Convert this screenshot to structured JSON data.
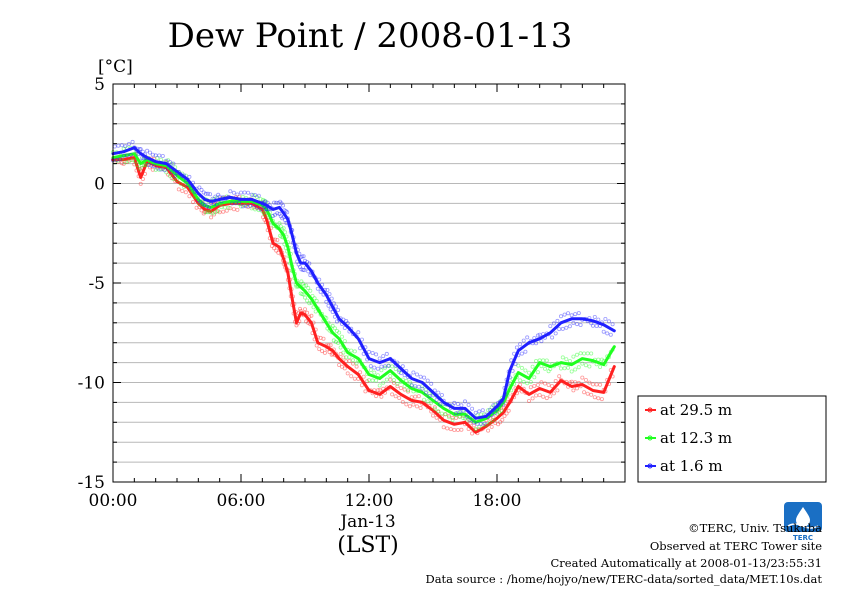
{
  "chart_data": {
    "type": "line",
    "title": "Dew Point / 2008-01-13",
    "ylabel": "[°C]",
    "xlabel_date": "Jan-13",
    "xlabel_tz": "(LST)",
    "ylim": [
      -15,
      5
    ],
    "xlim_hours": [
      0,
      24
    ],
    "y_ticks": [
      "5",
      "0",
      "-5",
      "-10",
      "-15"
    ],
    "y_tick_values": [
      5,
      0,
      -5,
      -10,
      -15
    ],
    "x_ticks": [
      "00:00",
      "06:00",
      "12:00",
      "18:00"
    ],
    "x_tick_values": [
      0,
      6,
      12,
      18
    ],
    "grid": true,
    "legend_position": "right",
    "series": [
      {
        "name": "at 29.5 m",
        "color": "#ff2020",
        "x": [
          0,
          0.5,
          1,
          1.3,
          1.6,
          2,
          2.5,
          3,
          3.5,
          4,
          4.3,
          4.6,
          5,
          5.5,
          6,
          6.5,
          7,
          7.2,
          7.5,
          7.8,
          8,
          8.2,
          8.4,
          8.6,
          8.8,
          9,
          9.3,
          9.6,
          10,
          10.3,
          10.6,
          11,
          11.5,
          12,
          12.5,
          13,
          13.5,
          14,
          14.5,
          15,
          15.5,
          16,
          16.5,
          17,
          17.5,
          18,
          18.3,
          18.6,
          19,
          19.5,
          20,
          20.5,
          21,
          21.5,
          22,
          22.5,
          23,
          23.5
        ],
        "values": [
          1.2,
          1.2,
          1.3,
          0.3,
          1.1,
          0.9,
          0.8,
          0.1,
          -0.2,
          -1.0,
          -1.3,
          -1.4,
          -1.1,
          -1.0,
          -1.0,
          -1.0,
          -1.3,
          -1.8,
          -3.0,
          -3.2,
          -3.8,
          -4.5,
          -5.8,
          -7.0,
          -6.5,
          -6.6,
          -7.0,
          -8.0,
          -8.2,
          -8.4,
          -8.8,
          -9.2,
          -9.6,
          -10.4,
          -10.6,
          -10.2,
          -10.6,
          -10.9,
          -11.0,
          -11.4,
          -11.9,
          -12.1,
          -12.0,
          -12.5,
          -12.2,
          -11.8,
          -11.5,
          -11.0,
          -10.2,
          -10.6,
          -10.3,
          -10.5,
          -9.9,
          -10.2,
          -10.1,
          -10.4,
          -10.5,
          -9.2
        ]
      },
      {
        "name": "at 12.3 m",
        "color": "#20ff20",
        "x": [
          0,
          0.5,
          1,
          1.3,
          1.6,
          2,
          2.5,
          3,
          3.5,
          4,
          4.3,
          4.6,
          5,
          5.5,
          6,
          6.5,
          7,
          7.2,
          7.5,
          7.8,
          8,
          8.2,
          8.4,
          8.6,
          8.8,
          9,
          9.3,
          9.6,
          10,
          10.3,
          10.6,
          11,
          11.5,
          12,
          12.5,
          13,
          13.5,
          14,
          14.5,
          15,
          15.5,
          16,
          16.5,
          17,
          17.5,
          18,
          18.3,
          18.6,
          19,
          19.5,
          20,
          20.5,
          21,
          21.5,
          22,
          22.5,
          23,
          23.5
        ],
        "values": [
          1.3,
          1.4,
          1.5,
          1.0,
          1.2,
          1.0,
          0.9,
          0.4,
          0.0,
          -0.8,
          -1.1,
          -1.2,
          -1.0,
          -0.9,
          -0.9,
          -0.9,
          -1.1,
          -1.3,
          -2.0,
          -2.3,
          -2.6,
          -3.2,
          -4.2,
          -5.0,
          -5.2,
          -5.4,
          -5.8,
          -6.3,
          -7.0,
          -7.5,
          -7.8,
          -8.5,
          -8.8,
          -9.6,
          -9.8,
          -9.4,
          -9.9,
          -10.3,
          -10.5,
          -10.9,
          -11.3,
          -11.6,
          -11.6,
          -12.0,
          -11.8,
          -11.4,
          -11.0,
          -10.3,
          -9.5,
          -9.8,
          -9.0,
          -9.2,
          -9.0,
          -9.1,
          -8.8,
          -8.9,
          -9.1,
          -8.2
        ]
      },
      {
        "name": "at 1.6 m",
        "color": "#2020ff",
        "x": [
          0,
          0.5,
          1,
          1.3,
          1.6,
          2,
          2.5,
          3,
          3.5,
          4,
          4.3,
          4.6,
          5,
          5.5,
          6,
          6.5,
          7,
          7.2,
          7.5,
          7.8,
          8,
          8.2,
          8.4,
          8.6,
          8.8,
          9,
          9.3,
          9.6,
          10,
          10.3,
          10.6,
          11,
          11.5,
          12,
          12.5,
          13,
          13.5,
          14,
          14.5,
          15,
          15.5,
          16,
          16.5,
          17,
          17.5,
          18,
          18.3,
          18.6,
          19,
          19.5,
          20,
          20.5,
          21,
          21.5,
          22,
          22.5,
          23,
          23.5
        ],
        "values": [
          1.5,
          1.6,
          1.8,
          1.5,
          1.3,
          1.1,
          1.0,
          0.6,
          0.2,
          -0.5,
          -0.8,
          -0.9,
          -0.8,
          -0.7,
          -0.8,
          -0.8,
          -1.0,
          -1.1,
          -1.3,
          -1.2,
          -1.5,
          -1.8,
          -2.6,
          -3.5,
          -4.0,
          -4.0,
          -4.4,
          -5.0,
          -5.6,
          -6.2,
          -6.8,
          -7.2,
          -7.8,
          -8.8,
          -9.0,
          -8.8,
          -9.3,
          -9.8,
          -10.0,
          -10.5,
          -11.0,
          -11.3,
          -11.3,
          -11.8,
          -11.7,
          -11.2,
          -10.8,
          -9.4,
          -8.4,
          -8.0,
          -7.8,
          -7.5,
          -7.0,
          -6.8,
          -6.8,
          -6.9,
          -7.1,
          -7.4
        ]
      }
    ]
  },
  "credits": {
    "copyright": "©TERC, Univ. Tsukuba",
    "observed": "Observed at TERC Tower site",
    "created": "Created Automatically at 2008-01-13/23:55:31",
    "source": "Data source : /home/hojyo/new/TERC-data/sorted_data/MET.10s.dat"
  },
  "logo": {
    "text": "TERC",
    "color": "#1a6fc4"
  }
}
